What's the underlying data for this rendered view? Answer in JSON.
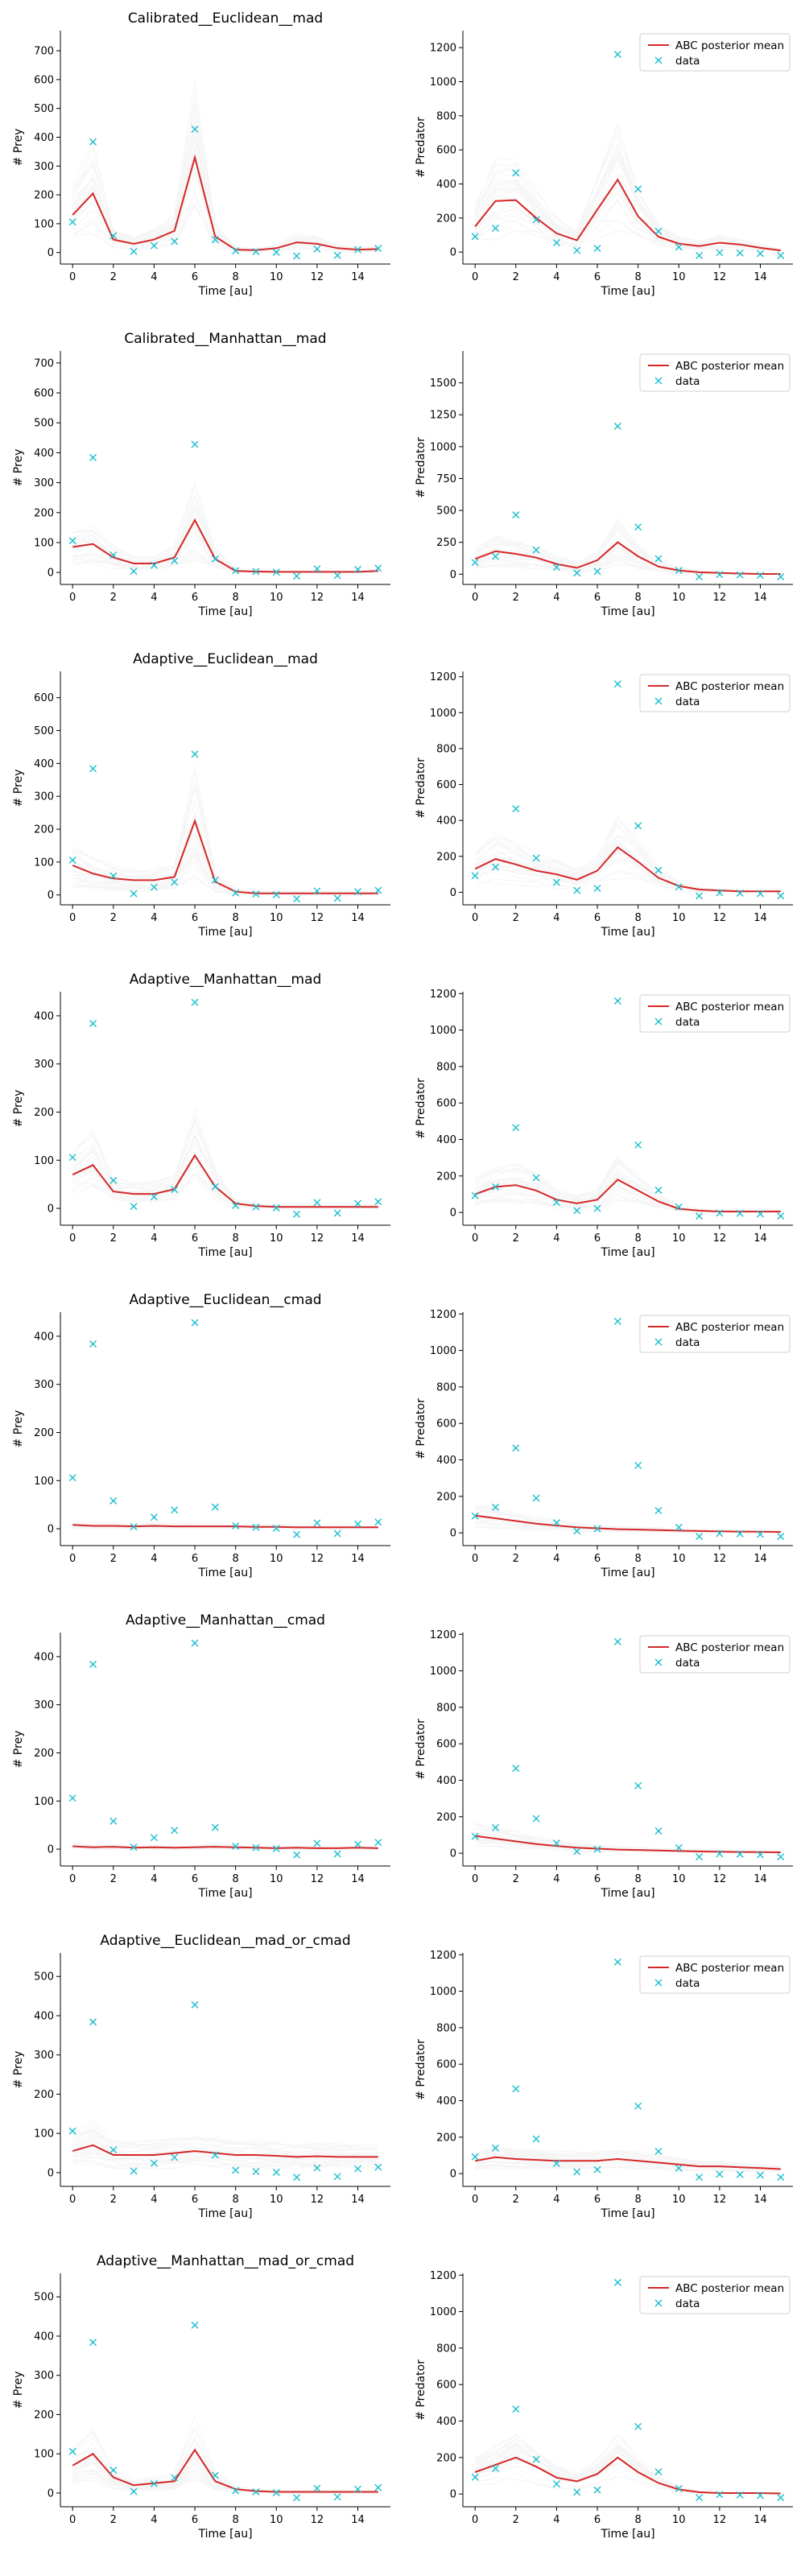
{
  "colors": {
    "mean": "#d62728",
    "data": "#17becf",
    "samples": "#999999"
  },
  "legend": {
    "mean_label": "ABC posterior mean",
    "data_label": "data"
  },
  "observed": {
    "x": [
      0,
      1,
      2,
      3,
      4,
      5,
      6,
      7,
      8,
      9,
      10,
      11,
      12,
      13,
      14,
      15
    ],
    "prey": [
      106,
      384,
      58,
      4,
      24,
      39,
      428,
      45,
      6,
      3,
      1,
      -12,
      12,
      -10,
      10,
      14
    ],
    "predator": [
      92,
      140,
      465,
      190,
      55,
      10,
      22,
      1160,
      370,
      122,
      30,
      -20,
      -3,
      -5,
      -8,
      -20
    ]
  },
  "chart_data": [
    {
      "type": "line",
      "title": "Calibrated__Euclidean__mad",
      "xlabel": "Time [au]",
      "ylabel": "# Prey",
      "xlim": [
        -0.6,
        15.6
      ],
      "ylim": [
        -40,
        770
      ],
      "yticks": [
        0,
        100,
        200,
        300,
        400,
        500,
        600,
        700
      ],
      "xticks": [
        0,
        2,
        4,
        6,
        8,
        10,
        12,
        14
      ],
      "series": [
        {
          "name": "ABC posterior mean",
          "x": [
            0,
            1,
            2,
            3,
            4,
            5,
            6,
            7,
            8,
            9,
            10,
            11,
            12,
            13,
            14,
            15
          ],
          "values": [
            130,
            205,
            45,
            30,
            45,
            75,
            330,
            55,
            10,
            8,
            15,
            35,
            30,
            15,
            10,
            12
          ]
        }
      ],
      "data_points": "prey",
      "legend": false
    },
    {
      "type": "line",
      "title": "",
      "xlabel": "Time [au]",
      "ylabel": "# Predator",
      "xlim": [
        -0.6,
        15.6
      ],
      "ylim": [
        -70,
        1300
      ],
      "yticks": [
        0,
        200,
        400,
        600,
        800,
        1000,
        1200
      ],
      "xticks": [
        0,
        2,
        4,
        6,
        8,
        10,
        12,
        14
      ],
      "series": [
        {
          "name": "ABC posterior mean",
          "x": [
            0,
            1,
            2,
            3,
            4,
            5,
            6,
            7,
            8,
            9,
            10,
            11,
            12,
            13,
            14,
            15
          ],
          "values": [
            150,
            300,
            305,
            200,
            110,
            70,
            250,
            425,
            210,
            90,
            50,
            35,
            55,
            45,
            25,
            10
          ]
        }
      ],
      "data_points": "predator",
      "legend": true
    },
    {
      "type": "line",
      "title": "Calibrated__Manhattan__mad",
      "xlabel": "Time [au]",
      "ylabel": "# Prey",
      "xlim": [
        -0.6,
        15.6
      ],
      "ylim": [
        -40,
        740
      ],
      "yticks": [
        0,
        100,
        200,
        300,
        400,
        500,
        600,
        700
      ],
      "xticks": [
        0,
        2,
        4,
        6,
        8,
        10,
        12,
        14
      ],
      "series": [
        {
          "name": "ABC posterior mean",
          "x": [
            0,
            1,
            2,
            3,
            4,
            5,
            6,
            7,
            8,
            9,
            10,
            11,
            12,
            13,
            14,
            15
          ],
          "values": [
            85,
            95,
            50,
            30,
            30,
            50,
            175,
            45,
            5,
            3,
            2,
            2,
            2,
            2,
            2,
            5
          ]
        }
      ],
      "data_points": "prey",
      "legend": false
    },
    {
      "type": "line",
      "title": "",
      "xlabel": "Time [au]",
      "ylabel": "# Predator",
      "xlim": [
        -0.6,
        15.6
      ],
      "ylim": [
        -80,
        1750
      ],
      "yticks": [
        0,
        250,
        500,
        750,
        1000,
        1250,
        1500
      ],
      "xticks": [
        0,
        2,
        4,
        6,
        8,
        10,
        12,
        14
      ],
      "series": [
        {
          "name": "ABC posterior mean",
          "x": [
            0,
            1,
            2,
            3,
            4,
            5,
            6,
            7,
            8,
            9,
            10,
            11,
            12,
            13,
            14,
            15
          ],
          "values": [
            120,
            180,
            160,
            130,
            80,
            50,
            110,
            250,
            140,
            60,
            30,
            15,
            10,
            5,
            2,
            2
          ]
        }
      ],
      "data_points": "predator",
      "legend": true
    },
    {
      "type": "line",
      "title": "Adaptive__Euclidean__mad",
      "xlabel": "Time [au]",
      "ylabel": "# Prey",
      "xlim": [
        -0.6,
        15.6
      ],
      "ylim": [
        -30,
        680
      ],
      "yticks": [
        0,
        100,
        200,
        300,
        400,
        500,
        600
      ],
      "xticks": [
        0,
        2,
        4,
        6,
        8,
        10,
        12,
        14
      ],
      "series": [
        {
          "name": "ABC posterior mean",
          "x": [
            0,
            1,
            2,
            3,
            4,
            5,
            6,
            7,
            8,
            9,
            10,
            11,
            12,
            13,
            14,
            15
          ],
          "values": [
            90,
            65,
            50,
            45,
            45,
            55,
            225,
            40,
            10,
            5,
            5,
            5,
            5,
            5,
            5,
            5
          ]
        }
      ],
      "data_points": "prey",
      "legend": false
    },
    {
      "type": "line",
      "title": "",
      "xlabel": "Time [au]",
      "ylabel": "# Predator",
      "xlim": [
        -0.6,
        15.6
      ],
      "ylim": [
        -70,
        1230
      ],
      "yticks": [
        0,
        200,
        400,
        600,
        800,
        1000,
        1200
      ],
      "xticks": [
        0,
        2,
        4,
        6,
        8,
        10,
        12,
        14
      ],
      "series": [
        {
          "name": "ABC posterior mean",
          "x": [
            0,
            1,
            2,
            3,
            4,
            5,
            6,
            7,
            8,
            9,
            10,
            11,
            12,
            13,
            14,
            15
          ],
          "values": [
            130,
            185,
            155,
            120,
            100,
            70,
            120,
            250,
            170,
            80,
            35,
            15,
            10,
            5,
            5,
            5
          ]
        }
      ],
      "data_points": "predator",
      "legend": true
    },
    {
      "type": "line",
      "title": "Adaptive__Manhattan__mad",
      "xlabel": "Time [au]",
      "ylabel": "# Prey",
      "xlim": [
        -0.6,
        15.6
      ],
      "ylim": [
        -35,
        450
      ],
      "yticks": [
        0,
        100,
        200,
        300,
        400
      ],
      "xticks": [
        0,
        2,
        4,
        6,
        8,
        10,
        12,
        14
      ],
      "series": [
        {
          "name": "ABC posterior mean",
          "x": [
            0,
            1,
            2,
            3,
            4,
            5,
            6,
            7,
            8,
            9,
            10,
            11,
            12,
            13,
            14,
            15
          ],
          "values": [
            70,
            90,
            35,
            30,
            30,
            40,
            110,
            45,
            10,
            5,
            3,
            3,
            3,
            3,
            3,
            3
          ]
        }
      ],
      "data_points": "prey",
      "legend": false
    },
    {
      "type": "line",
      "title": "",
      "xlabel": "Time [au]",
      "ylabel": "# Predator",
      "xlim": [
        -0.6,
        15.6
      ],
      "ylim": [
        -70,
        1210
      ],
      "yticks": [
        0,
        200,
        400,
        600,
        800,
        1000,
        1200
      ],
      "xticks": [
        0,
        2,
        4,
        6,
        8,
        10,
        12,
        14
      ],
      "series": [
        {
          "name": "ABC posterior mean",
          "x": [
            0,
            1,
            2,
            3,
            4,
            5,
            6,
            7,
            8,
            9,
            10,
            11,
            12,
            13,
            14,
            15
          ],
          "values": [
            100,
            140,
            150,
            120,
            70,
            50,
            70,
            180,
            120,
            60,
            20,
            10,
            5,
            5,
            5,
            5
          ]
        }
      ],
      "data_points": "predator",
      "legend": true
    },
    {
      "type": "line",
      "title": "Adaptive__Euclidean__cmad",
      "xlabel": "Time [au]",
      "ylabel": "# Prey",
      "xlim": [
        -0.6,
        15.6
      ],
      "ylim": [
        -35,
        450
      ],
      "yticks": [
        0,
        100,
        200,
        300,
        400
      ],
      "xticks": [
        0,
        2,
        4,
        6,
        8,
        10,
        12,
        14
      ],
      "series": [
        {
          "name": "ABC posterior mean",
          "x": [
            0,
            1,
            2,
            3,
            4,
            5,
            6,
            7,
            8,
            9,
            10,
            11,
            12,
            13,
            14,
            15
          ],
          "values": [
            8,
            6,
            6,
            5,
            6,
            5,
            5,
            5,
            5,
            4,
            4,
            3,
            3,
            3,
            3,
            3
          ]
        }
      ],
      "data_points": "prey",
      "legend": false
    },
    {
      "type": "line",
      "title": "",
      "xlabel": "Time [au]",
      "ylabel": "# Predator",
      "xlim": [
        -0.6,
        15.6
      ],
      "ylim": [
        -70,
        1210
      ],
      "yticks": [
        0,
        200,
        400,
        600,
        800,
        1000,
        1200
      ],
      "xticks": [
        0,
        2,
        4,
        6,
        8,
        10,
        12,
        14
      ],
      "series": [
        {
          "name": "ABC posterior mean",
          "x": [
            0,
            1,
            2,
            3,
            4,
            5,
            6,
            7,
            8,
            9,
            10,
            11,
            12,
            13,
            14,
            15
          ],
          "values": [
            95,
            80,
            65,
            50,
            40,
            30,
            25,
            20,
            18,
            15,
            12,
            10,
            8,
            7,
            6,
            5
          ]
        }
      ],
      "data_points": "predator",
      "legend": true
    },
    {
      "type": "line",
      "title": "Adaptive__Manhattan__cmad",
      "xlabel": "Time [au]",
      "ylabel": "# Prey",
      "xlim": [
        -0.6,
        15.6
      ],
      "ylim": [
        -35,
        450
      ],
      "yticks": [
        0,
        100,
        200,
        300,
        400
      ],
      "xticks": [
        0,
        2,
        4,
        6,
        8,
        10,
        12,
        14
      ],
      "series": [
        {
          "name": "ABC posterior mean",
          "x": [
            0,
            1,
            2,
            3,
            4,
            5,
            6,
            7,
            8,
            9,
            10,
            11,
            12,
            13,
            14,
            15
          ],
          "values": [
            6,
            4,
            5,
            3,
            4,
            3,
            4,
            5,
            4,
            3,
            2,
            3,
            2,
            2,
            3,
            2
          ]
        }
      ],
      "data_points": "prey",
      "legend": false
    },
    {
      "type": "line",
      "title": "",
      "xlabel": "Time [au]",
      "ylabel": "# Predator",
      "xlim": [
        -0.6,
        15.6
      ],
      "ylim": [
        -70,
        1210
      ],
      "yticks": [
        0,
        200,
        400,
        600,
        800,
        1000,
        1200
      ],
      "xticks": [
        0,
        2,
        4,
        6,
        8,
        10,
        12,
        14
      ],
      "series": [
        {
          "name": "ABC posterior mean",
          "x": [
            0,
            1,
            2,
            3,
            4,
            5,
            6,
            7,
            8,
            9,
            10,
            11,
            12,
            13,
            14,
            15
          ],
          "values": [
            95,
            80,
            65,
            50,
            40,
            30,
            25,
            20,
            18,
            15,
            12,
            10,
            8,
            7,
            6,
            5
          ]
        }
      ],
      "data_points": "predator",
      "legend": true
    },
    {
      "type": "line",
      "title": "Adaptive__Euclidean__mad_or_cmad",
      "xlabel": "Time [au]",
      "ylabel": "# Prey",
      "xlim": [
        -0.6,
        15.6
      ],
      "ylim": [
        -35,
        560
      ],
      "yticks": [
        0,
        100,
        200,
        300,
        400,
        500
      ],
      "xticks": [
        0,
        2,
        4,
        6,
        8,
        10,
        12,
        14
      ],
      "series": [
        {
          "name": "ABC posterior mean",
          "x": [
            0,
            1,
            2,
            3,
            4,
            5,
            6,
            7,
            8,
            9,
            10,
            11,
            12,
            13,
            14,
            15
          ],
          "values": [
            55,
            70,
            45,
            45,
            45,
            50,
            55,
            50,
            45,
            45,
            43,
            40,
            42,
            40,
            40,
            40
          ]
        }
      ],
      "data_points": "prey",
      "legend": false
    },
    {
      "type": "line",
      "title": "",
      "xlabel": "Time [au]",
      "ylabel": "# Predator",
      "xlim": [
        -0.6,
        15.6
      ],
      "ylim": [
        -70,
        1210
      ],
      "yticks": [
        0,
        200,
        400,
        600,
        800,
        1000,
        1200
      ],
      "xticks": [
        0,
        2,
        4,
        6,
        8,
        10,
        12,
        14
      ],
      "series": [
        {
          "name": "ABC posterior mean",
          "x": [
            0,
            1,
            2,
            3,
            4,
            5,
            6,
            7,
            8,
            9,
            10,
            11,
            12,
            13,
            14,
            15
          ],
          "values": [
            70,
            90,
            80,
            75,
            70,
            70,
            70,
            80,
            70,
            60,
            50,
            40,
            40,
            35,
            30,
            25
          ]
        }
      ],
      "data_points": "predator",
      "legend": true
    },
    {
      "type": "line",
      "title": "Adaptive__Manhattan__mad_or_cmad",
      "xlabel": "Time [au]",
      "ylabel": "# Prey",
      "xlim": [
        -0.6,
        15.6
      ],
      "ylim": [
        -35,
        560
      ],
      "yticks": [
        0,
        100,
        200,
        300,
        400,
        500
      ],
      "xticks": [
        0,
        2,
        4,
        6,
        8,
        10,
        12,
        14
      ],
      "series": [
        {
          "name": "ABC posterior mean",
          "x": [
            0,
            1,
            2,
            3,
            4,
            5,
            6,
            7,
            8,
            9,
            10,
            11,
            12,
            13,
            14,
            15
          ],
          "values": [
            70,
            100,
            40,
            20,
            25,
            30,
            110,
            30,
            10,
            5,
            3,
            3,
            3,
            3,
            3,
            3
          ]
        }
      ],
      "data_points": "prey",
      "legend": false
    },
    {
      "type": "line",
      "title": "",
      "xlabel": "Time [au]",
      "ylabel": "# Predator",
      "xlim": [
        -0.6,
        15.6
      ],
      "ylim": [
        -70,
        1210
      ],
      "yticks": [
        0,
        200,
        400,
        600,
        800,
        1000,
        1200
      ],
      "xticks": [
        0,
        2,
        4,
        6,
        8,
        10,
        12,
        14
      ],
      "series": [
        {
          "name": "ABC posterior mean",
          "x": [
            0,
            1,
            2,
            3,
            4,
            5,
            6,
            7,
            8,
            9,
            10,
            11,
            12,
            13,
            14,
            15
          ],
          "values": [
            120,
            160,
            200,
            150,
            90,
            70,
            110,
            200,
            120,
            60,
            25,
            10,
            5,
            5,
            5,
            3
          ]
        }
      ],
      "data_points": "predator",
      "legend": true
    }
  ]
}
